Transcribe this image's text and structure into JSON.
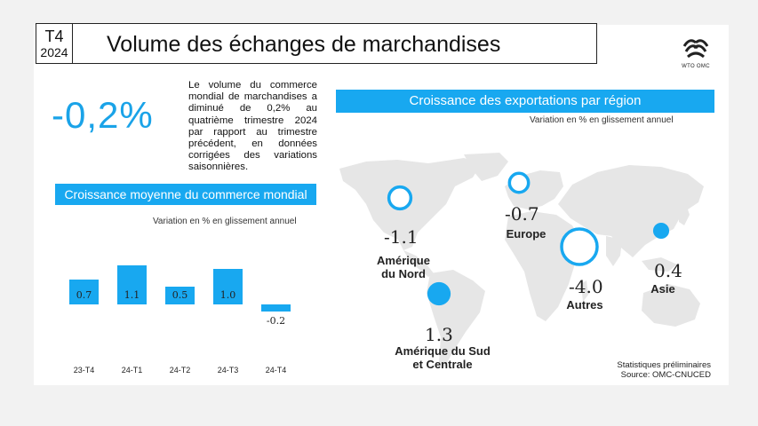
{
  "header": {
    "quarter": "T4",
    "year": "2024",
    "title": "Volume des échanges de marchandises",
    "logo_text": "WTO OMC"
  },
  "headline": {
    "value": "-0,2%",
    "description": "Le volume du commerce mondial de marchandises a diminué de 0,2% au quatrième trimestre 2024 par rapport au trimestre précédent, en données corrigées des variations saisonnières."
  },
  "left_panel": {
    "title": "Croissance moyenne du commerce mondial",
    "subtitle": "Variation en % en glissement annuel"
  },
  "right_panel": {
    "title": "Croissance des exportations par région",
    "subtitle": "Variation en % en glissement annuel"
  },
  "footer": {
    "line1": "Statistiques préliminaires",
    "line2": "Source: OMC-CNUCED"
  },
  "colors": {
    "accent": "#18a8f0",
    "map": "#e6e6e6"
  },
  "chart_data": [
    {
      "type": "bar",
      "title": "Croissance moyenne du commerce mondial",
      "subtitle": "Variation en % en glissement annuel",
      "categories": [
        "23-T4",
        "24-T1",
        "24-T2",
        "24-T3",
        "24-T4"
      ],
      "values": [
        0.7,
        1.1,
        0.5,
        1.0,
        -0.2
      ],
      "value_labels": [
        "0.7",
        "1.1",
        "0.5",
        "1.0",
        "-0.2"
      ],
      "ylim": [
        -0.5,
        1.2
      ],
      "grid": false
    },
    {
      "type": "scatter",
      "title": "Croissance des exportations par région",
      "subtitle": "Variation en % en glissement annuel",
      "regions": [
        {
          "name": "Amérique du Nord",
          "value": -1.1,
          "value_label": "-1.1",
          "label_lines": [
            "Amérique",
            "du Nord"
          ]
        },
        {
          "name": "Amérique du Sud et Centrale",
          "value": 1.3,
          "value_label": "1.3",
          "label_lines": [
            "Amérique du Sud",
            "et Centrale"
          ]
        },
        {
          "name": "Europe",
          "value": -0.7,
          "value_label": "-0.7",
          "label_lines": [
            "Europe"
          ]
        },
        {
          "name": "Autres",
          "value": -4.0,
          "value_label": "-4.0",
          "label_lines": [
            "Autres"
          ]
        },
        {
          "name": "Asie",
          "value": 0.4,
          "value_label": "0.4",
          "label_lines": [
            "Asie"
          ]
        }
      ],
      "encoding": "filled circle = positive growth, hollow circle = negative growth; circle size ~ magnitude"
    }
  ]
}
